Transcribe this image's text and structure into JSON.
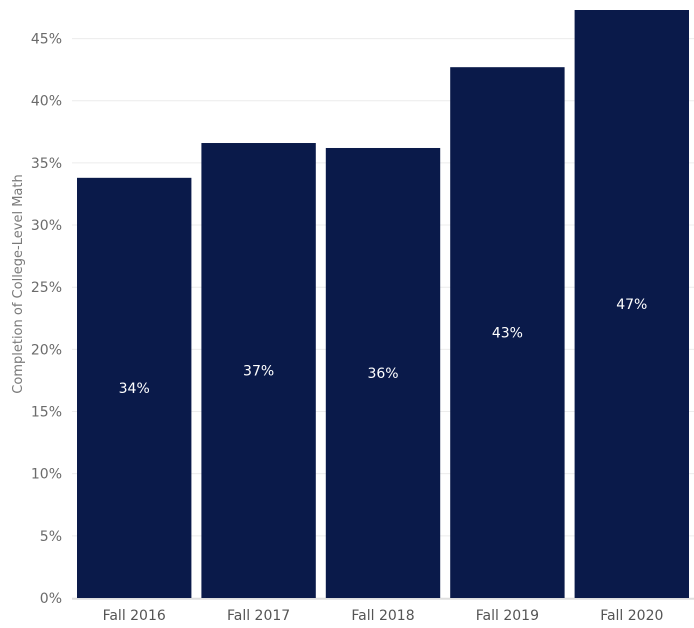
{
  "chart_data": {
    "type": "bar",
    "title": "",
    "xlabel": "",
    "ylabel": "Completion of College-Level Math",
    "categories": [
      "Fall 2016",
      "Fall 2017",
      "Fall 2018",
      "Fall 2019",
      "Fall 2020"
    ],
    "values": [
      33.8,
      36.6,
      36.2,
      42.7,
      47.3
    ],
    "data_labels": [
      "34%",
      "37%",
      "36%",
      "43%",
      "47%"
    ],
    "ylim": [
      0,
      47.3
    ],
    "yticks": [
      0,
      5,
      10,
      15,
      20,
      25,
      30,
      35,
      40,
      45
    ],
    "ytick_labels": [
      "0%",
      "5%",
      "10%",
      "15%",
      "20%",
      "25%",
      "30%",
      "35%",
      "40%",
      "45%"
    ],
    "grid": true,
    "legend": "none",
    "colors": {
      "bar": "#0a1a4a",
      "grid": "#ececec",
      "axis": "#cfcfcf"
    }
  }
}
